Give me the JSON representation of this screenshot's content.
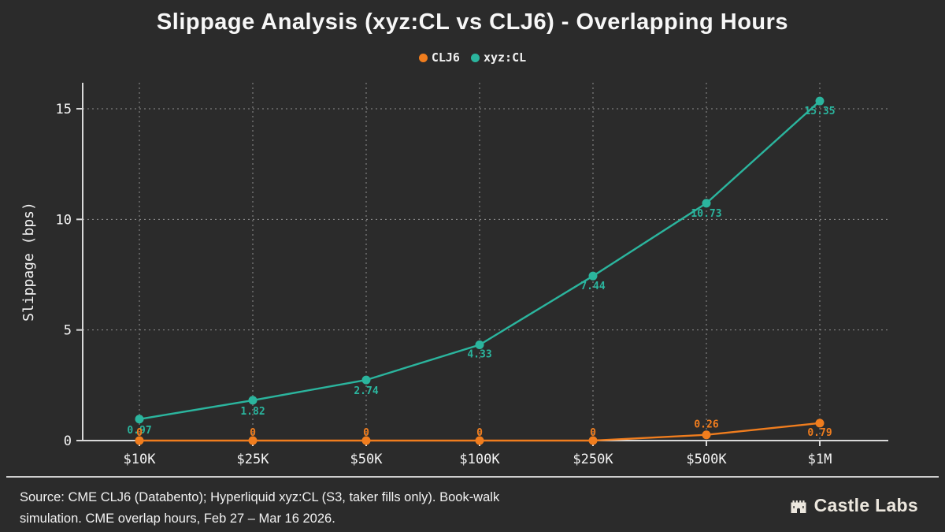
{
  "title": "Slippage Analysis (xyz:CL vs CLJ6) - Overlapping Hours",
  "chart_data": {
    "type": "line",
    "categories": [
      "$10K",
      "$25K",
      "$50K",
      "$100K",
      "$250K",
      "$500K",
      "$1M"
    ],
    "series": [
      {
        "name": "CLJ6",
        "color": "#f07d1e",
        "values": [
          0,
          0,
          0,
          0,
          0,
          0.26,
          0.79
        ],
        "point_labels": [
          "0",
          "0",
          "0",
          "0",
          "0",
          "0.26",
          "0.79"
        ],
        "label_dy": [
          -6,
          -6,
          -6,
          -6,
          -6,
          -9,
          16
        ]
      },
      {
        "name": "xyz:CL",
        "color": "#2bb59e",
        "values": [
          0.97,
          1.82,
          2.74,
          4.33,
          7.44,
          10.73,
          15.35
        ],
        "point_labels": [
          "0.97",
          "1.82",
          "2.74",
          "4.33",
          "7.44",
          "10.73",
          "15.35"
        ],
        "label_dy": [
          18,
          18,
          18,
          16,
          17,
          17,
          17
        ]
      }
    ],
    "xlabel": "",
    "ylabel": "Slippage (bps)",
    "yticks": [
      0,
      5,
      10,
      15
    ],
    "ylim": [
      0,
      16.2
    ],
    "grid": true,
    "legend_position": "top-center"
  },
  "footer": {
    "lines": [
      "Source: CME CLJ6 (Databento); Hyperliquid xyz:CL (S3, taker fills only). Book-walk",
      "simulation. CME overlap hours, Feb 27 – Mar 16 2026."
    ],
    "brand": "Castle Labs"
  },
  "colors": {
    "background": "#2b2b2b",
    "text": "#f5f5f5",
    "axis": "#d9d9d9",
    "grid": "#919191",
    "clj6": "#f07d1e",
    "xyzcl": "#2bb59e",
    "brand_text": "#ece7de"
  }
}
